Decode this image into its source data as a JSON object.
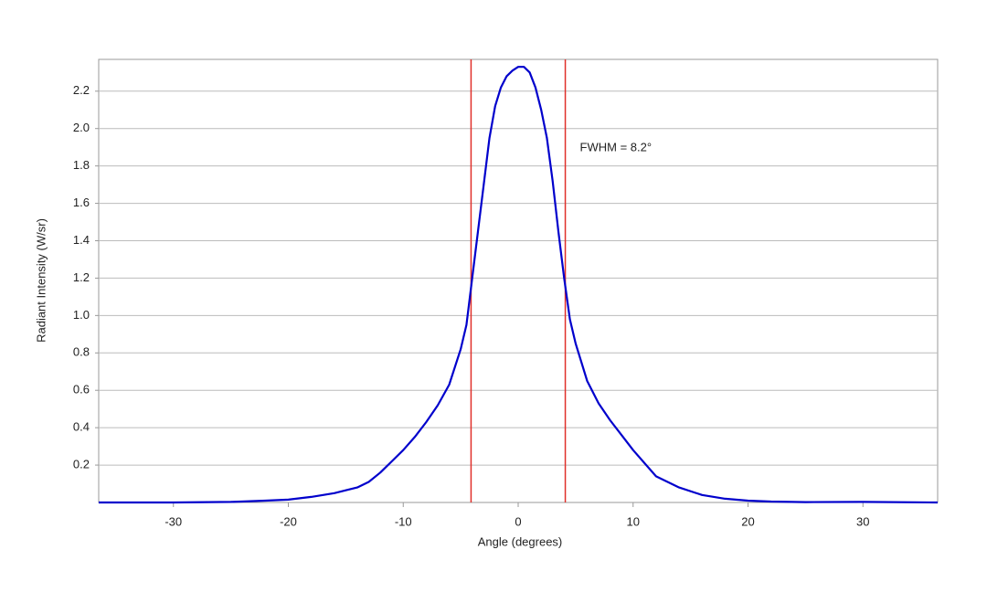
{
  "chart_data": {
    "type": "line",
    "x_label": "Angle (degrees)",
    "y_label": "Radiant Intensity (W/sr)",
    "annotation": "FWHM = 8.2°",
    "x": [
      -36.5,
      -30,
      -25,
      -22,
      -20,
      -18,
      -16,
      -14,
      -13,
      -12,
      -11,
      -10,
      -9,
      -8,
      -7,
      -6,
      -5,
      -4.5,
      -4,
      -3.5,
      -3,
      -2.5,
      -2,
      -1.5,
      -1,
      -0.5,
      0,
      0.5,
      1,
      1.5,
      2,
      2.5,
      3,
      3.5,
      4,
      4.5,
      5,
      6,
      7,
      8,
      9,
      10,
      11,
      12,
      13,
      14,
      16,
      18,
      20,
      22,
      25,
      30,
      36.5
    ],
    "series": [
      {
        "color": "#0000cc",
        "values": [
          0.0,
          0.0,
          0.003,
          0.01,
          0.015,
          0.03,
          0.05,
          0.08,
          0.11,
          0.16,
          0.22,
          0.28,
          0.35,
          0.43,
          0.52,
          0.63,
          0.82,
          0.95,
          1.2,
          1.45,
          1.7,
          1.95,
          2.12,
          2.22,
          2.28,
          2.31,
          2.33,
          2.33,
          2.3,
          2.22,
          2.1,
          1.95,
          1.72,
          1.45,
          1.2,
          0.98,
          0.85,
          0.65,
          0.53,
          0.44,
          0.36,
          0.28,
          0.21,
          0.14,
          0.11,
          0.08,
          0.04,
          0.02,
          0.01,
          0.005,
          0.002,
          0.003,
          0.0
        ]
      }
    ],
    "markers": [
      {
        "x": -4.1,
        "color": "#e0302a"
      },
      {
        "x": 4.1,
        "color": "#e0302a"
      }
    ],
    "xlim": [
      -36.5,
      36.5
    ],
    "xticks": [
      -30,
      -20,
      -10,
      0,
      10,
      20,
      30
    ],
    "ylim": [
      0,
      2.37
    ],
    "yticks": [
      0.2,
      0.4,
      0.6,
      0.8,
      {
        "value": 1.0,
        "label": "1.0"
      },
      1.2,
      1.4,
      1.6,
      1.8,
      {
        "value": 2.0,
        "label": "2.0"
      },
      2.2
    ],
    "grid": true
  }
}
